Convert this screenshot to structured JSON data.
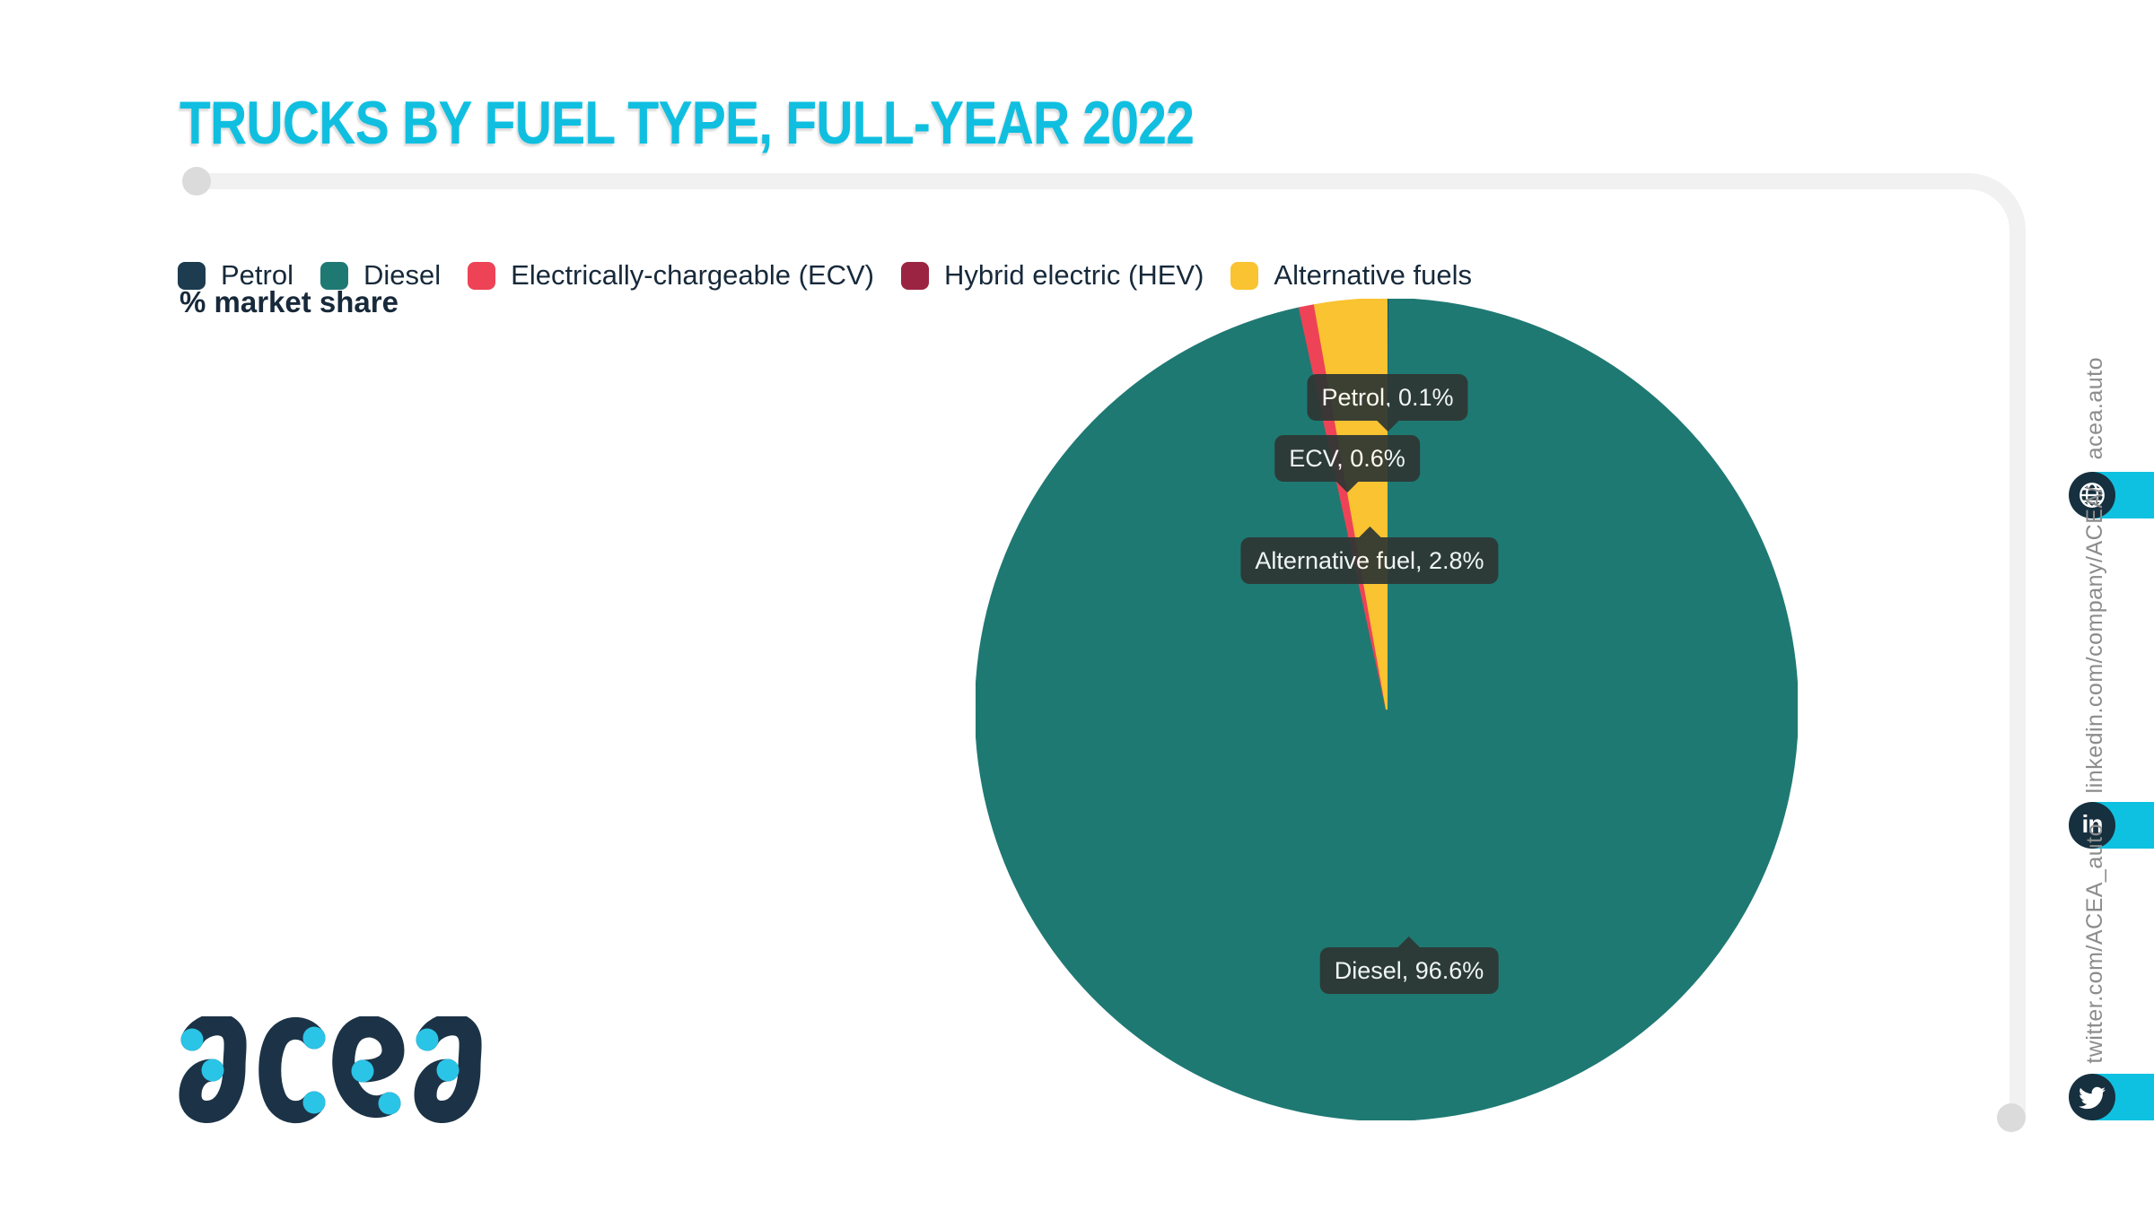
{
  "header": {
    "title": "TRUCKS BY FUEL TYPE, FULL-YEAR 2022"
  },
  "chart_data": {
    "type": "pie",
    "title": "TRUCKS BY FUEL TYPE, FULL-YEAR 2022",
    "unit_label": "% market share",
    "start_angle_deg": 0,
    "direction": "clockwise",
    "slices": [
      {
        "label": "Petrol",
        "value": 0.1,
        "color": "#1d3c50"
      },
      {
        "label": "Diesel",
        "value": 96.6,
        "color": "#1f7973"
      },
      {
        "label": "Electrically-chargeable (ECV)",
        "value": 0.6,
        "color": "#ee4356"
      },
      {
        "label": "Hybrid electric (HEV)",
        "value": 0.0,
        "color": "#9c2443"
      },
      {
        "label": "Alternative fuels",
        "value": 2.8,
        "color": "#f9c331"
      }
    ],
    "tooltips": [
      "Petrol, 0.1%",
      "ECV, 0.6%",
      "Alternative fuel, 2.8%",
      "Diesel, 96.6%"
    ],
    "legend_position": "top-left"
  },
  "sidebar": {
    "website": {
      "label": "acea.auto",
      "icon": "globe-icon"
    },
    "linkedin": {
      "label": "linkedin.com/company/ACEA/",
      "icon": "linkedin-icon",
      "glyph": "in"
    },
    "twitter": {
      "label": "twitter.com/ACEA_auto",
      "icon": "twitter-icon"
    }
  },
  "branding": {
    "logo_text": "acea"
  },
  "colors": {
    "accent_cyan": "#10bfe0",
    "navy": "#17293a",
    "frame_gray": "#f1f1f1",
    "tooltip_bg": "#2e3734",
    "sidebar_text_gray": "#8c8c8c",
    "icon_circle_navy": "#16303f"
  }
}
